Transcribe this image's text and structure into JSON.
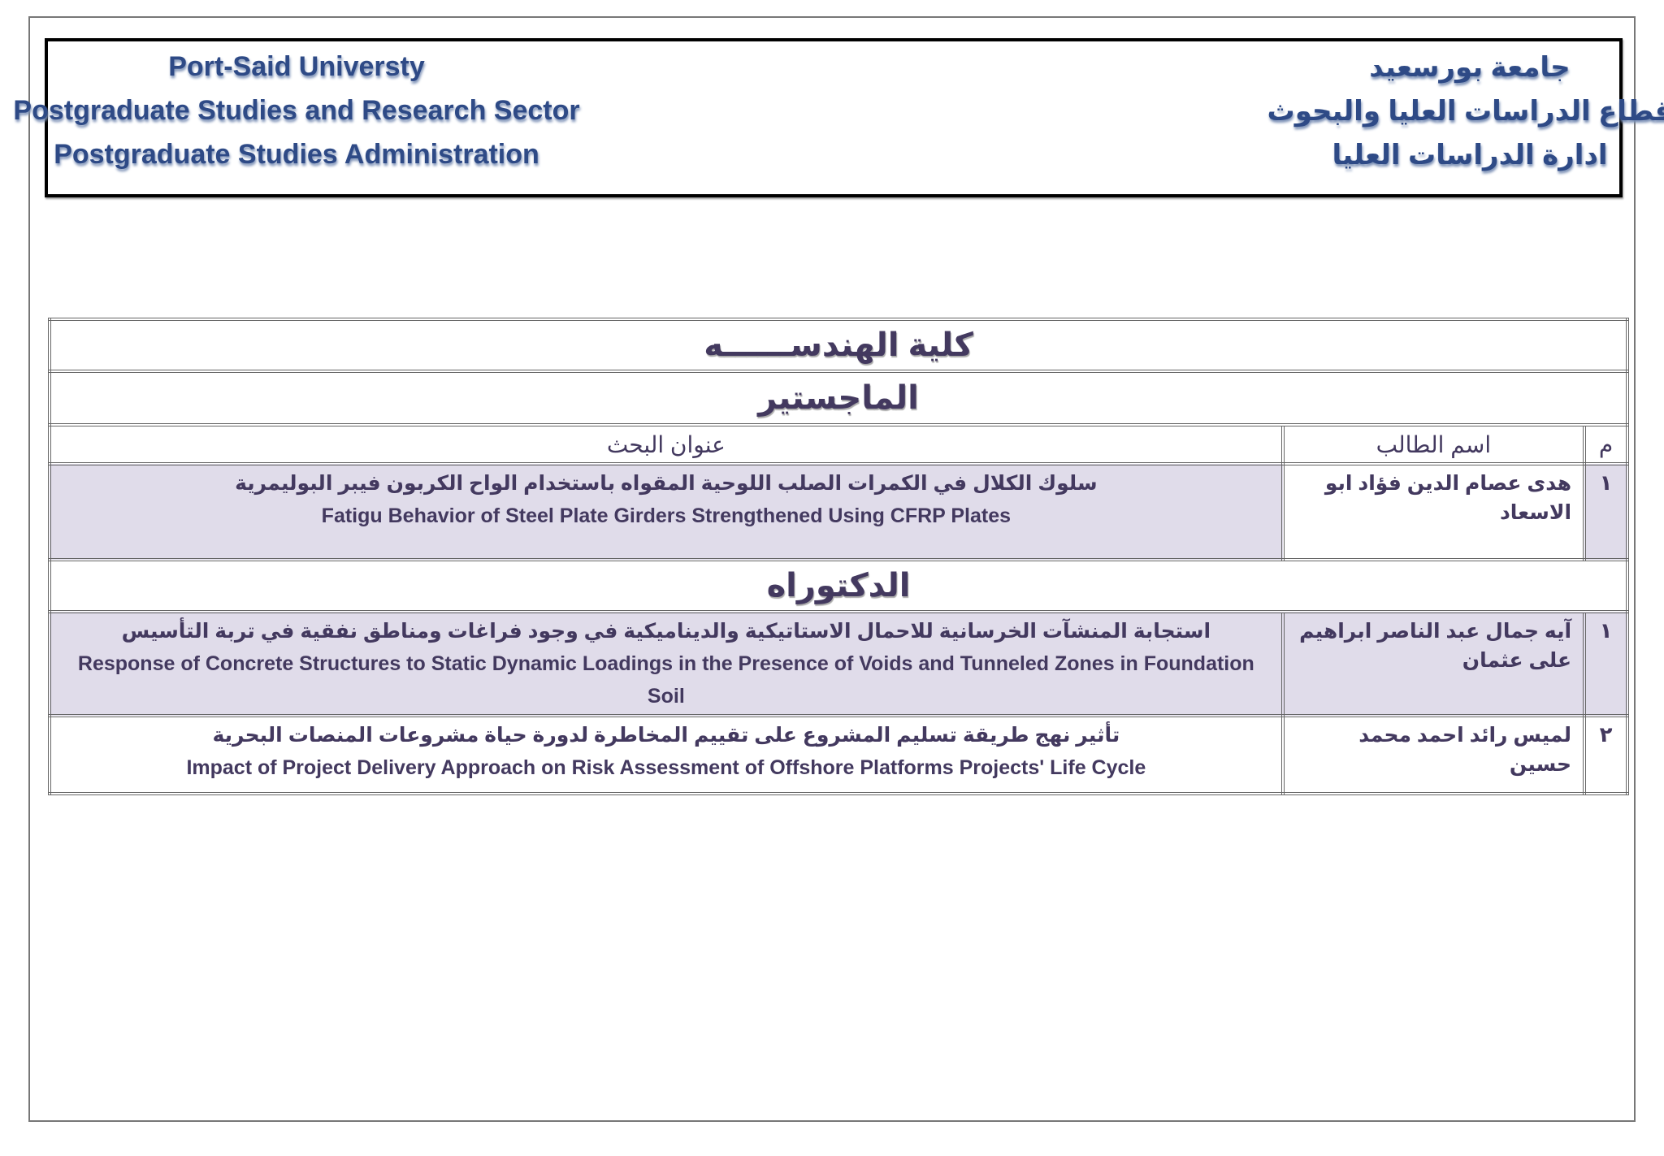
{
  "header": {
    "english": [
      "Port-Said Universty",
      "Postgraduate Studies and Research Sector",
      "Postgraduate Studies Administration"
    ],
    "arabic": [
      "جامعة بورسعيد",
      "قطاع الدراسات العليا والبحوث",
      "ادارة الدراسات العليا"
    ]
  },
  "table": {
    "faculty": "كلية الهندســــــه",
    "columns": {
      "num": "م",
      "name": "اسم الطالب",
      "title": "عنوان البحث"
    },
    "masters": {
      "label": "الماجستير",
      "rows": [
        {
          "num": "١",
          "name": "هدى عصام الدين  فؤاد ابو الاسعاد",
          "title_ar": "سلوك الكلال في الكمرات الصلب اللوحية المقواه باستخدام الواح  الكربون فيبر البوليمرية",
          "title_en": "Fatigu Behavior of Steel Plate Girders Strengthened Using CFRP Plates"
        }
      ]
    },
    "doctorate": {
      "label": "الدكتوراه",
      "rows": [
        {
          "num": "١",
          "name": "آيه جمال عبد الناصر ابراهيم على عثمان",
          "title_ar": "استجابة المنشآت الخرسانية للاحمال الاستاتيكية والديناميكية في وجود فراغات ومناطق نفقية في تربة التأسيس",
          "title_en": "Response of Concrete Structures to Static Dynamic Loadings in the Presence of Voids and Tunneled Zones in Foundation Soil"
        },
        {
          "num": "٢",
          "name": "لميس رائد احمد محمد حسين",
          "title_ar": "تأثير نهج طريقة تسليم المشروع على تقييم المخاطرة لدورة حياة مشروعات المنصات البحرية",
          "title_en": "Impact of Project Delivery Approach on Risk Assessment of Offshore Platforms Projects' Life Cycle"
        }
      ]
    }
  },
  "colors": {
    "text": "#43395f",
    "row_fill": "#e0dcea",
    "header_text": "#2e4a86"
  }
}
